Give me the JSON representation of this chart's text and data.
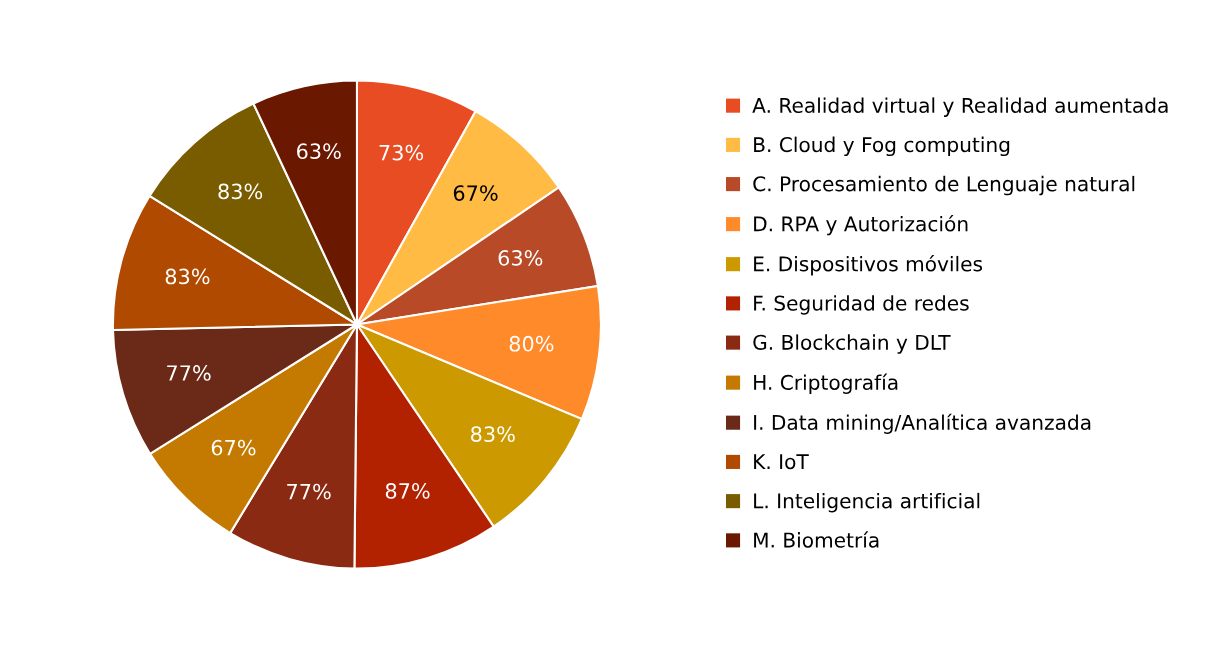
{
  "chart_data": {
    "type": "pie",
    "categories": [
      "A. Realidad virtual y Realidad aumentada",
      "B. Cloud y Fog computing",
      "C. Procesamiento de Lenguaje natural",
      "D. RPA y Autorización",
      "E. Dispositivos móviles",
      "F. Seguridad de redes",
      "G. Blockchain y DLT",
      "H. Criptografía",
      "I. Data mining/Analítica avanzada",
      "K. IoT",
      "L. Inteligencia artificial",
      "M. Biometría"
    ],
    "values": [
      73,
      67,
      63,
      80,
      83,
      87,
      77,
      67,
      77,
      83,
      83,
      63
    ],
    "value_labels": [
      "73%",
      "67%",
      "63%",
      "80%",
      "83%",
      "87%",
      "77%",
      "67%",
      "77%",
      "83%",
      "83%",
      "63%"
    ],
    "colors": [
      "#e84c22",
      "#ffbb44",
      "#b84a28",
      "#ff8a2a",
      "#cc9900",
      "#b22200",
      "#8b2a12",
      "#c47a00",
      "#6b2a18",
      "#b04a00",
      "#7a5c00",
      "#6b1800"
    ],
    "legend": "right"
  }
}
